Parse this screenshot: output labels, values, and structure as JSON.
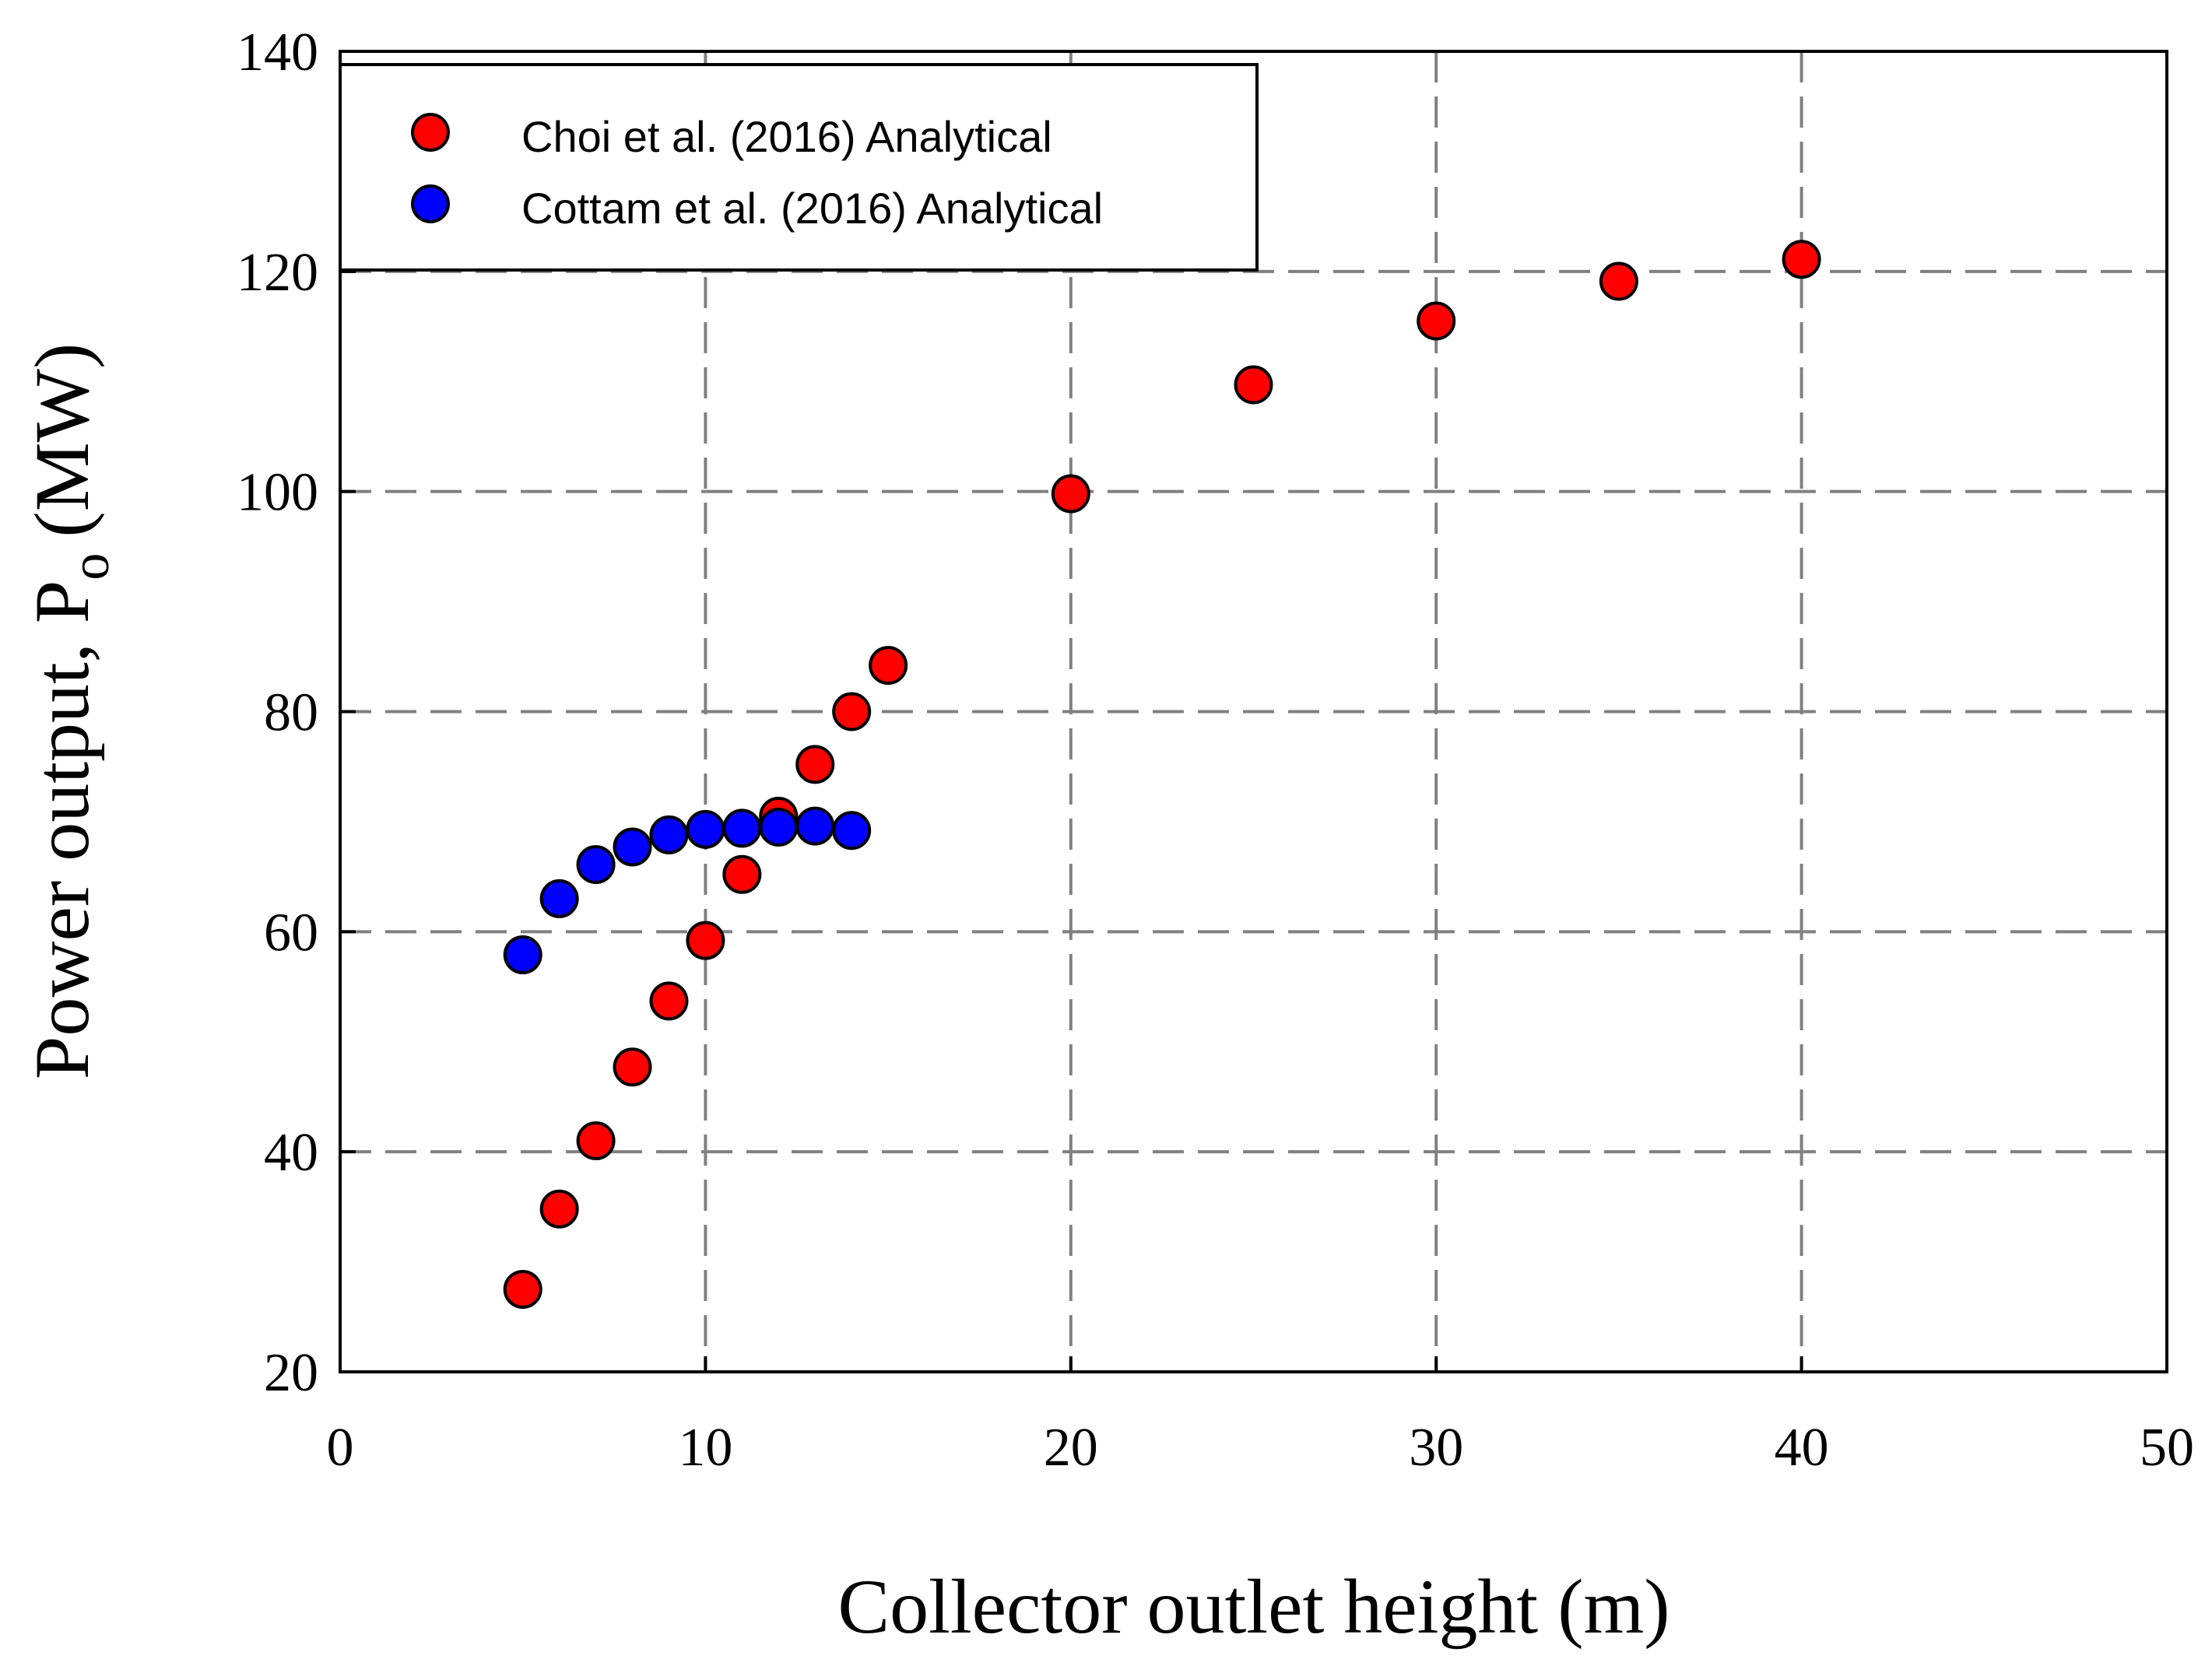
{
  "chart_data": {
    "type": "scatter",
    "title": "",
    "xlabel": "Collector outlet height (m)",
    "ylabel": "Power output, P",
    "ylabel_subscript": "o",
    "ylabel_unit": "(MW)",
    "xlim": [
      0,
      50
    ],
    "ylim": [
      20,
      140
    ],
    "xticks": [
      0,
      10,
      20,
      30,
      40,
      50
    ],
    "yticks": [
      20,
      40,
      60,
      80,
      100,
      120,
      140
    ],
    "grid": true,
    "legend_position": "top-left",
    "series": [
      {
        "name": "Choi et al. (2016) Analytical",
        "color": "#ff0000",
        "x": [
          5,
          6,
          7,
          8,
          9,
          10,
          11,
          12,
          13,
          14,
          15,
          20,
          25,
          30,
          35,
          40
        ],
        "y": [
          27.5,
          34.8,
          41.0,
          47.7,
          53.7,
          59.2,
          65.2,
          70.5,
          75.2,
          80.0,
          84.2,
          99.8,
          109.7,
          115.5,
          119.1,
          121.1
        ]
      },
      {
        "name": "Cottam et al. (2016) Analytical",
        "color": "#0000ff",
        "x": [
          5,
          6,
          7,
          8,
          9,
          10,
          11,
          12,
          13,
          14
        ],
        "y": [
          57.9,
          63.0,
          66.1,
          67.7,
          68.8,
          69.3,
          69.4,
          69.5,
          69.6,
          69.2
        ]
      }
    ]
  }
}
